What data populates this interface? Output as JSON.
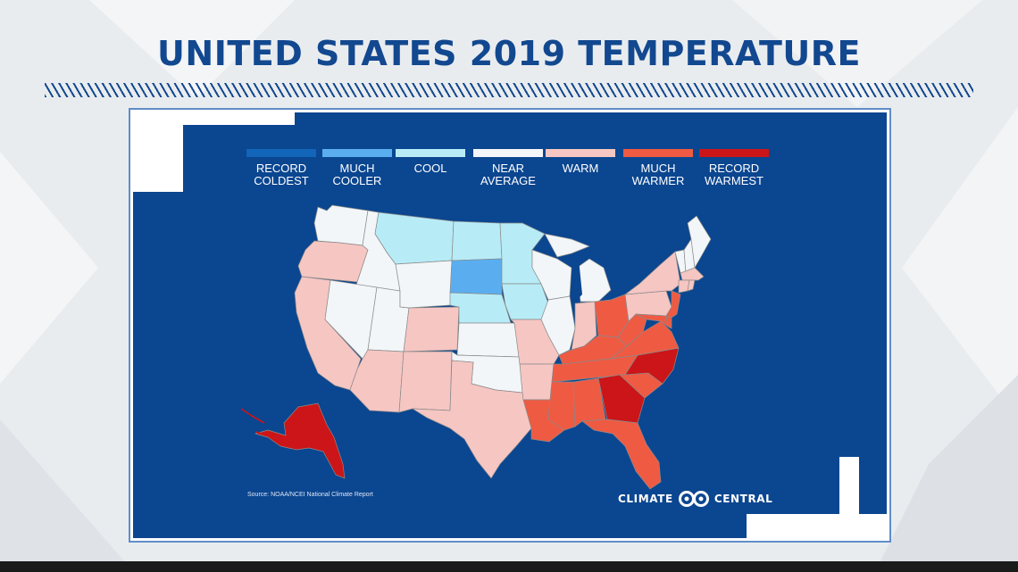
{
  "title": "UNITED STATES 2019 TEMPERATURE",
  "legend": [
    {
      "label": "RECORD\nCOLDEST",
      "color": "#1265b8"
    },
    {
      "label": "MUCH\nCOOLER",
      "color": "#5aaef0"
    },
    {
      "label": "COOL",
      "color": "#b7ecf7"
    },
    {
      "label": "NEAR\nAVERAGE",
      "color": "#f2f6f8"
    },
    {
      "label": "WARM",
      "color": "#f6c6c3"
    },
    {
      "label": "MUCH\nWARMER",
      "color": "#ef5a43"
    },
    {
      "label": "RECORD\nWARMEST",
      "color": "#cc1518"
    }
  ],
  "states": {
    "WA": "near-average",
    "OR": "warm",
    "CA": "warm",
    "ID": "near-average",
    "NV": "near-average",
    "UT": "near-average",
    "AZ": "warm",
    "MT": "cool",
    "WY": "near-average",
    "CO": "warm",
    "NM": "warm",
    "ND": "cool",
    "SD": "much-cooler",
    "NE": "cool",
    "KS": "near-average",
    "OK": "near-average",
    "TX": "warm",
    "MN": "cool",
    "IA": "cool",
    "MO": "warm",
    "AR": "warm",
    "LA": "much-warmer",
    "WI": "near-average",
    "IL": "near-average",
    "MI": "near-average",
    "IN": "warm",
    "OH": "much-warmer",
    "KY": "much-warmer",
    "TN": "much-warmer",
    "MS": "much-warmer",
    "AL": "much-warmer",
    "GA": "record-warmest",
    "FL": "much-warmer",
    "SC": "much-warmer",
    "NC": "record-warmest",
    "VA": "much-warmer",
    "WV": "much-warmer",
    "PA": "warm",
    "NY": "warm",
    "VT": "near-average",
    "NH": "near-average",
    "ME": "near-average",
    "MA": "warm",
    "CT": "warm",
    "RI": "warm",
    "NJ": "much-warmer",
    "DE": "much-warmer",
    "MD": "much-warmer",
    "AK": "record-warmest"
  },
  "source": "Source: NOAA/NCEI National Climate Report",
  "brand": {
    "left": "CLIMATE",
    "right": "CENTRAL"
  }
}
